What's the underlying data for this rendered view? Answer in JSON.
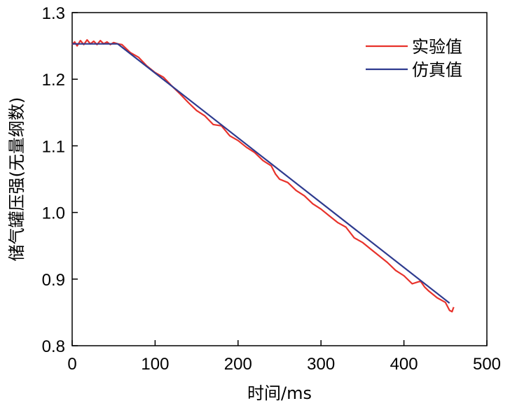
{
  "chart_data": {
    "type": "line",
    "xlabel": "时间/ms",
    "ylabel": "储气罐压强(无量纲数)",
    "xlim": [
      0,
      500
    ],
    "ylim": [
      0.8,
      1.3
    ],
    "x_ticks": [
      "0",
      "100",
      "200",
      "300",
      "400",
      "500"
    ],
    "y_ticks": [
      "0.8",
      "0.9",
      "1.0",
      "1.1",
      "1.2",
      "1.3"
    ],
    "grid": false,
    "legend_position": "top-right",
    "series": [
      {
        "name": "实验值",
        "color": "#e8322b",
        "x": [
          0,
          3,
          6,
          10,
          14,
          18,
          22,
          26,
          30,
          34,
          38,
          42,
          46,
          50,
          55,
          60,
          70,
          80,
          90,
          100,
          110,
          120,
          130,
          140,
          150,
          160,
          170,
          180,
          190,
          200,
          210,
          220,
          230,
          240,
          245,
          250,
          260,
          270,
          280,
          290,
          300,
          310,
          320,
          330,
          340,
          350,
          360,
          370,
          380,
          390,
          400,
          410,
          420,
          425,
          430,
          440,
          450,
          455,
          458,
          460
        ],
        "y": [
          1.252,
          1.256,
          1.25,
          1.258,
          1.252,
          1.259,
          1.253,
          1.257,
          1.252,
          1.258,
          1.253,
          1.256,
          1.252,
          1.255,
          1.253,
          1.252,
          1.24,
          1.233,
          1.22,
          1.21,
          1.203,
          1.19,
          1.178,
          1.165,
          1.153,
          1.145,
          1.132,
          1.13,
          1.115,
          1.108,
          1.098,
          1.09,
          1.078,
          1.07,
          1.058,
          1.05,
          1.045,
          1.033,
          1.025,
          1.013,
          1.005,
          0.995,
          0.985,
          0.978,
          0.962,
          0.955,
          0.945,
          0.935,
          0.925,
          0.913,
          0.905,
          0.893,
          0.897,
          0.888,
          0.882,
          0.872,
          0.865,
          0.853,
          0.851,
          0.858
        ]
      },
      {
        "name": "仿真值",
        "color": "#2e3b8f",
        "x": [
          0,
          55,
          455
        ],
        "y": [
          1.253,
          1.253,
          0.864
        ]
      }
    ]
  }
}
